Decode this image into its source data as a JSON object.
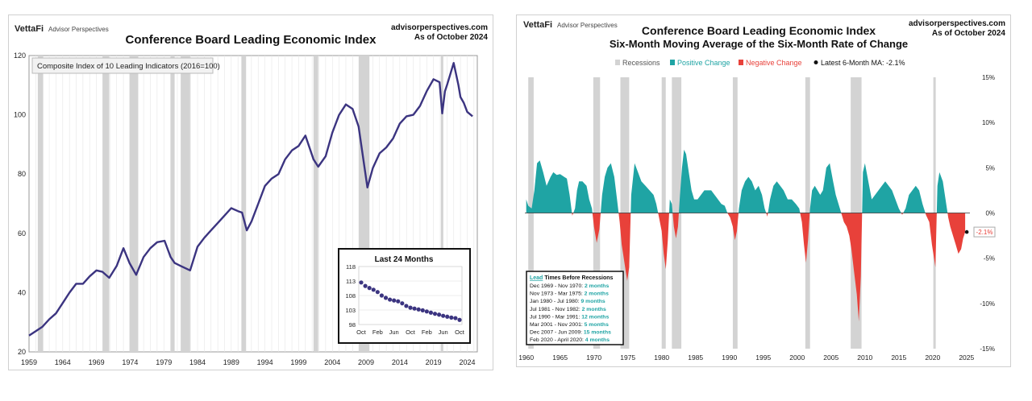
{
  "colors": {
    "line": "#3b3480",
    "recession": "#d3d3d3",
    "positive": "#1fa4a4",
    "negative": "#e8413a",
    "grid": "#e6e6e6",
    "lead_highlight": "#1fa4a4"
  },
  "left": {
    "brand_vetta": "VettaFi",
    "brand_ap": "Advisor Perspectives",
    "title": "Conference Board Leading Economic Index",
    "site": "advisorperspectives.com",
    "asof": "As of October 2024",
    "legend": "Composite Index of 10 Leading Indicators (2016=100)",
    "inset_title": "Last 24 Months"
  },
  "right": {
    "brand_vetta": "VettaFi",
    "brand_ap": "Advisor Perspectives",
    "title_line1": "Conference Board Leading Economic Index",
    "title_line2": "Six-Month Moving Average of the Six-Month Rate of Change",
    "site": "advisorperspectives.com",
    "asof": "As of October 2024",
    "legend": {
      "recessions": "Recessions",
      "positive": "Positive Change",
      "negative": "Negative Change",
      "latest": "Latest 6-Month MA: -2.1%"
    },
    "latest_label": "-2.1%",
    "lead_box": {
      "title_word": "Lead",
      "title_rest": "Times Before Recessions",
      "rows": [
        {
          "range": "Dec 1969 - Nov 1970: ",
          "lead": "2 months"
        },
        {
          "range": "Nov 1973 - Mar 1975: ",
          "lead": "2 months"
        },
        {
          "range": "Jan 1980 - Jul 1980: ",
          "lead": "9 months"
        },
        {
          "range": "Jul 1981 - Nov 1982: ",
          "lead": "2 months"
        },
        {
          "range": "Jul 1990 - Mar 1991: ",
          "lead": "12 months"
        },
        {
          "range": "Mar 2001 - Nov 2001: ",
          "lead": "5 months"
        },
        {
          "range": "Dec 2007 - Jun 2009: ",
          "lead": "15 months"
        },
        {
          "range": "Feb 2020 - April 2020: ",
          "lead": "4 months"
        }
      ]
    }
  },
  "chart_data": [
    {
      "type": "line",
      "title": "Conference Board Leading Economic Index",
      "series": [
        {
          "name": "Composite Index of 10 Leading Indicators (2016=100)",
          "x": [
            1959.0,
            1960.0,
            1961.0,
            1962.0,
            1963.0,
            1964.0,
            1965.0,
            1966.0,
            1967.0,
            1968.0,
            1969.0,
            1969.9,
            1970.9,
            1972.0,
            1973.0,
            1973.9,
            1974.9,
            1976.0,
            1977.0,
            1978.0,
            1979.1,
            1980.0,
            1980.6,
            1981.5,
            1982.9,
            1984.0,
            1985.0,
            1986.0,
            1987.0,
            1988.0,
            1989.0,
            1990.0,
            1990.6,
            1991.3,
            1992.0,
            1993.0,
            1994.0,
            1995.0,
            1996.0,
            1997.0,
            1998.0,
            1999.0,
            2000.0,
            2001.2,
            2001.9,
            2003.0,
            2004.0,
            2005.0,
            2006.0,
            2007.0,
            2007.9,
            2009.2,
            2010.0,
            2011.0,
            2012.0,
            2013.0,
            2014.0,
            2015.0,
            2016.0,
            2017.0,
            2018.0,
            2019.0,
            2019.9,
            2020.3,
            2020.7,
            2021.0,
            2022.0,
            2022.7,
            2023.0,
            2023.5,
            2024.0,
            2024.8
          ],
          "y": [
            25.5,
            27,
            28.5,
            31,
            33,
            36.5,
            40,
            43,
            43,
            45.5,
            47.5,
            47,
            45,
            49,
            55,
            50,
            46,
            52,
            55,
            57,
            57.5,
            52,
            50,
            49,
            47.5,
            55.5,
            58.5,
            61,
            63.5,
            66,
            68.5,
            67.5,
            67,
            61,
            64,
            70,
            76,
            78.5,
            80,
            85,
            88,
            89.5,
            93,
            85,
            82.5,
            86,
            94,
            100,
            103.5,
            102,
            96,
            75.5,
            82,
            87,
            89,
            92,
            97,
            99.5,
            100,
            103,
            108,
            112,
            111,
            100.5,
            108,
            110,
            117.5,
            110,
            106,
            104,
            101,
            99.5
          ]
        }
      ],
      "ylabel": "",
      "ylim": [
        20,
        120
      ],
      "xlim": [
        1959,
        2025.5
      ],
      "yticks": [
        20,
        40,
        60,
        80,
        100,
        120
      ],
      "xticks": [
        "1959",
        "1964",
        "1969",
        "1974",
        "1979",
        "1984",
        "1989",
        "1994",
        "1999",
        "2004",
        "2009",
        "2014",
        "2019",
        "2024"
      ],
      "recessions": [
        [
          1960.3,
          1961.1
        ],
        [
          1969.9,
          1970.9
        ],
        [
          1973.9,
          1975.2
        ],
        [
          1980.0,
          1980.6
        ],
        [
          1981.5,
          1982.9
        ],
        [
          1990.5,
          1991.2
        ],
        [
          2001.2,
          2001.9
        ],
        [
          2007.9,
          2009.5
        ],
        [
          2020.1,
          2020.3
        ]
      ],
      "grid": true,
      "legend_position": "top-left"
    },
    {
      "type": "scatter",
      "title": "Last 24 Months",
      "x": [
        "Oct",
        "Nov",
        "Dec",
        "Jan",
        "Feb",
        "Mar",
        "Apr",
        "May",
        "Jun",
        "Jul",
        "Aug",
        "Sep",
        "Oct",
        "Nov",
        "Dec",
        "Jan",
        "Feb",
        "Mar",
        "Apr",
        "May",
        "Jun",
        "Jul",
        "Aug",
        "Sep",
        "Oct"
      ],
      "y": [
        112.5,
        111.3,
        110.6,
        110,
        109.2,
        108,
        107.2,
        106.6,
        106.3,
        106.0,
        105.3,
        104.4,
        103.8,
        103.5,
        103.2,
        102.9,
        102.5,
        102.1,
        101.7,
        101.4,
        101,
        100.7,
        100.4,
        100.2,
        99.6
      ],
      "xticks": [
        "Oct",
        "Feb",
        "Jun",
        "Oct",
        "Feb",
        "Jun",
        "Oct"
      ],
      "yticks": [
        98,
        103,
        108,
        113,
        118
      ],
      "ylim": [
        98,
        118
      ]
    },
    {
      "type": "area",
      "title": "Six-Month Moving Average of the Six-Month Rate of Change",
      "series": [
        {
          "name": "6-Month MA",
          "x": [
            1960.0,
            1960.3,
            1960.8,
            1961.2,
            1961.6,
            1962.0,
            1962.5,
            1963.0,
            1963.6,
            1964.0,
            1964.5,
            1965.0,
            1965.6,
            1966.0,
            1966.4,
            1966.8,
            1967.2,
            1967.5,
            1967.8,
            1968.3,
            1968.9,
            1969.3,
            1969.7,
            1970.0,
            1970.4,
            1970.8,
            1971.2,
            1971.6,
            1972.0,
            1972.5,
            1973.0,
            1973.4,
            1973.8,
            1974.1,
            1974.5,
            1974.9,
            1975.2,
            1975.5,
            1976.0,
            1976.5,
            1977.0,
            1977.6,
            1978.2,
            1978.8,
            1979.2,
            1979.6,
            1980.0,
            1980.3,
            1980.6,
            1980.9,
            1981.2,
            1981.5,
            1981.8,
            1982.1,
            1982.4,
            1982.7,
            1983.0,
            1983.3,
            1983.6,
            1984.0,
            1984.4,
            1984.8,
            1985.3,
            1985.8,
            1986.3,
            1986.8,
            1987.3,
            1987.8,
            1988.3,
            1988.8,
            1989.3,
            1989.7,
            1990.1,
            1990.5,
            1990.8,
            1991.1,
            1991.4,
            1991.8,
            1992.3,
            1992.8,
            1993.3,
            1993.8,
            1994.3,
            1994.8,
            1995.2,
            1995.6,
            1996.0,
            1996.5,
            1997.0,
            1997.5,
            1998.0,
            1998.6,
            1999.2,
            1999.8,
            2000.3,
            2000.7,
            2001.0,
            2001.3,
            2001.6,
            2001.9,
            2002.2,
            2002.6,
            2003.0,
            2003.4,
            2003.8,
            2004.3,
            2004.8,
            2005.3,
            2005.7,
            2006.1,
            2006.5,
            2006.9,
            2007.3,
            2007.7,
            2008.0,
            2008.4,
            2008.8,
            2009.1,
            2009.4,
            2009.7,
            2010.0,
            2010.5,
            2011.0,
            2011.5,
            2012.0,
            2012.5,
            2013.0,
            2013.5,
            2014.0,
            2014.5,
            2015.0,
            2015.5,
            2016.0,
            2016.5,
            2017.0,
            2017.5,
            2018.0,
            2018.5,
            2019.0,
            2019.5,
            2019.9,
            2020.2,
            2020.4,
            2020.7,
            2021.0,
            2021.5,
            2022.0,
            2022.3,
            2022.6,
            2023.0,
            2023.4,
            2023.8,
            2024.2,
            2024.5,
            2024.8
          ],
          "y": [
            1.5,
            0.8,
            0.5,
            2.5,
            5.5,
            5.8,
            4.5,
            3.0,
            4.0,
            4.5,
            4.2,
            4.3,
            4.0,
            3.8,
            2.0,
            -0.3,
            0.5,
            2.5,
            3.5,
            3.5,
            3.0,
            1.5,
            0.5,
            -1.5,
            -3.3,
            -1.8,
            2.0,
            4.0,
            5.0,
            5.5,
            4.0,
            1.5,
            -1.0,
            -3.5,
            -5.5,
            -7.5,
            -6.0,
            2.0,
            5.5,
            4.5,
            3.5,
            3.0,
            2.5,
            2.0,
            1.0,
            -0.5,
            -2.0,
            -4.5,
            -6.2,
            -3.0,
            1.5,
            1.0,
            -1.5,
            -2.8,
            -1.5,
            2.0,
            5.0,
            7.0,
            6.5,
            4.5,
            2.5,
            1.5,
            1.5,
            2.0,
            2.5,
            2.5,
            2.5,
            2.0,
            1.5,
            1.0,
            0.8,
            0.0,
            -0.5,
            -1.5,
            -3.0,
            -2.0,
            0.5,
            2.5,
            3.5,
            4.0,
            3.5,
            2.5,
            3.0,
            2.0,
            0.5,
            -0.4,
            1.5,
            3.0,
            3.5,
            3.0,
            2.5,
            1.5,
            1.5,
            1.0,
            0.5,
            -1.0,
            -3.5,
            -5.5,
            -3.0,
            0.5,
            2.5,
            3.0,
            2.5,
            2.0,
            2.5,
            5.0,
            5.5,
            3.5,
            2.0,
            1.0,
            0.0,
            -1.0,
            -1.5,
            -2.5,
            -4.0,
            -6.5,
            -9.0,
            -12.0,
            -7.0,
            4.5,
            5.5,
            3.5,
            1.5,
            2.0,
            2.5,
            3.0,
            3.5,
            3.0,
            2.5,
            1.5,
            0.5,
            -0.2,
            0.5,
            2.0,
            2.5,
            3.0,
            2.5,
            1.0,
            -0.2,
            -1.0,
            -3.5,
            -5.0,
            -6.0,
            3.0,
            4.5,
            3.5,
            1.0,
            -0.5,
            -1.5,
            -2.5,
            -3.5,
            -4.5,
            -4.0,
            -2.8,
            -2.1
          ]
        }
      ],
      "ylim": [
        -15,
        15
      ],
      "xlim": [
        1959.8,
        2025.5
      ],
      "yticks": [
        "15%",
        "10%",
        "5%",
        "0%",
        "-5%",
        "-10%",
        "-15%"
      ],
      "xticks": [
        "1960",
        "1965",
        "1970",
        "1975",
        "1980",
        "1985",
        "1990",
        "1995",
        "2000",
        "2005",
        "2010",
        "2015",
        "2020",
        "2025"
      ],
      "recessions": [
        [
          1960.3,
          1961.1
        ],
        [
          1969.9,
          1970.9
        ],
        [
          1973.9,
          1975.2
        ],
        [
          1980.0,
          1980.6
        ],
        [
          1981.5,
          1982.9
        ],
        [
          1990.5,
          1991.2
        ],
        [
          2001.2,
          2001.9
        ],
        [
          2007.9,
          2009.5
        ],
        [
          2020.1,
          2020.3
        ]
      ],
      "latest_value": -2.1,
      "legend_position": "top"
    }
  ]
}
